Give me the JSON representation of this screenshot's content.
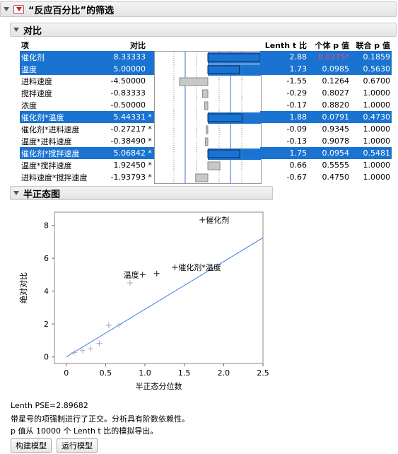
{
  "top_header": {
    "title": "“反应百分比”的筛选"
  },
  "contrast_header": {
    "title": "对比"
  },
  "table": {
    "headers": {
      "term": "项",
      "contrast": "对比",
      "lenth_t": "Lenth t 比",
      "individual_p": "个体 p 值",
      "simultaneous_p": "联合 p 值"
    },
    "rows": [
      {
        "term": "催化剂",
        "contrast": "8.33333",
        "star": "",
        "lenth_t": "2.88",
        "individual_p": "0.0275*",
        "simultaneous_p": "0.1859",
        "highlight": true,
        "p_red": true,
        "value": 8.33333
      },
      {
        "term": "温度",
        "contrast": "5.00000",
        "star": "",
        "lenth_t": "1.73",
        "individual_p": "0.0985",
        "simultaneous_p": "0.5630",
        "highlight": true,
        "p_red": false,
        "value": 5.0
      },
      {
        "term": "进料速度",
        "contrast": "-4.50000",
        "star": "",
        "lenth_t": "-1.55",
        "individual_p": "0.1264",
        "simultaneous_p": "0.6700",
        "highlight": false,
        "p_red": false,
        "value": -4.5
      },
      {
        "term": "搅拌速度",
        "contrast": "-0.83333",
        "star": "",
        "lenth_t": "-0.29",
        "individual_p": "0.8027",
        "simultaneous_p": "1.0000",
        "highlight": false,
        "p_red": false,
        "value": -0.83333
      },
      {
        "term": "浓度",
        "contrast": "-0.50000",
        "star": "",
        "lenth_t": "-0.17",
        "individual_p": "0.8820",
        "simultaneous_p": "1.0000",
        "highlight": false,
        "p_red": false,
        "value": -0.5
      },
      {
        "term": "催化剂*温度",
        "contrast": "5.44331",
        "star": "*",
        "lenth_t": "1.88",
        "individual_p": "0.0791",
        "simultaneous_p": "0.4730",
        "highlight": true,
        "p_red": false,
        "value": 5.44331
      },
      {
        "term": "催化剂*进料速度",
        "contrast": "-0.27217",
        "star": "*",
        "lenth_t": "-0.09",
        "individual_p": "0.9345",
        "simultaneous_p": "1.0000",
        "highlight": false,
        "p_red": false,
        "value": -0.27217
      },
      {
        "term": "温度*进料速度",
        "contrast": "-0.38490",
        "star": "*",
        "lenth_t": "-0.13",
        "individual_p": "0.9078",
        "simultaneous_p": "1.0000",
        "highlight": false,
        "p_red": false,
        "value": -0.3849
      },
      {
        "term": "催化剂*搅拌速度",
        "contrast": "5.06842",
        "star": "*",
        "lenth_t": "1.75",
        "individual_p": "0.0954",
        "simultaneous_p": "0.5481",
        "highlight": true,
        "p_red": false,
        "value": 5.06842
      },
      {
        "term": "温度*搅拌速度",
        "contrast": "1.92450",
        "star": "*",
        "lenth_t": "0.66",
        "individual_p": "0.5555",
        "simultaneous_p": "1.0000",
        "highlight": false,
        "p_red": false,
        "value": 1.9245
      },
      {
        "term": "进料速度*搅拌速度",
        "contrast": "-1.93793",
        "star": "*",
        "lenth_t": "-0.67",
        "individual_p": "0.4750",
        "simultaneous_p": "1.0000",
        "highlight": false,
        "p_red": false,
        "value": -1.93793
      }
    ]
  },
  "half_normal_header": {
    "title": "半正态图"
  },
  "chart_data": {
    "type": "scatter",
    "title": "",
    "xlabel": "半正态分位数",
    "ylabel": "绝对对比",
    "xlim": [
      -0.15,
      2.5
    ],
    "ylim": [
      -0.4,
      8.8
    ],
    "x_ticks": [
      "0",
      "0.5",
      "1.0",
      "1.5",
      "2.0",
      "2.5"
    ],
    "y_ticks": [
      "0",
      "2",
      "4",
      "6",
      "8"
    ],
    "points": [
      {
        "x": 0.1,
        "y": 0.27,
        "label": ""
      },
      {
        "x": 0.21,
        "y": 0.38,
        "label": ""
      },
      {
        "x": 0.31,
        "y": 0.5,
        "label": ""
      },
      {
        "x": 0.42,
        "y": 0.83,
        "label": ""
      },
      {
        "x": 0.54,
        "y": 1.92,
        "label": ""
      },
      {
        "x": 0.67,
        "y": 1.94,
        "label": ""
      },
      {
        "x": 0.81,
        "y": 4.5,
        "label": ""
      },
      {
        "x": 0.97,
        "y": 5.0,
        "label": "温度"
      },
      {
        "x": 1.15,
        "y": 5.07,
        "label": ""
      },
      {
        "x": 1.38,
        "y": 5.44,
        "label": "催化剂*温度"
      },
      {
        "x": 1.73,
        "y": 8.33,
        "label": "催化剂"
      }
    ],
    "line": {
      "slope": 2.89682,
      "intercept": 0
    },
    "highlight_color": "#1a1a1a",
    "faded_color": "#aaaaaa",
    "line_color": "#3b78e0"
  },
  "notes": {
    "pse": "Lenth PSE=2.89682",
    "star_note": "带星号的项强制进行了正交。分析具有阶数依赖性。",
    "p_note": "p 值从 10000 个 Lenth t 比的模拟导出。"
  },
  "buttons": {
    "build_model": "构建模型",
    "run_model": "运行模型"
  },
  "colors": {
    "selection": "#1a73d0",
    "significant_p": "#e0245e"
  }
}
